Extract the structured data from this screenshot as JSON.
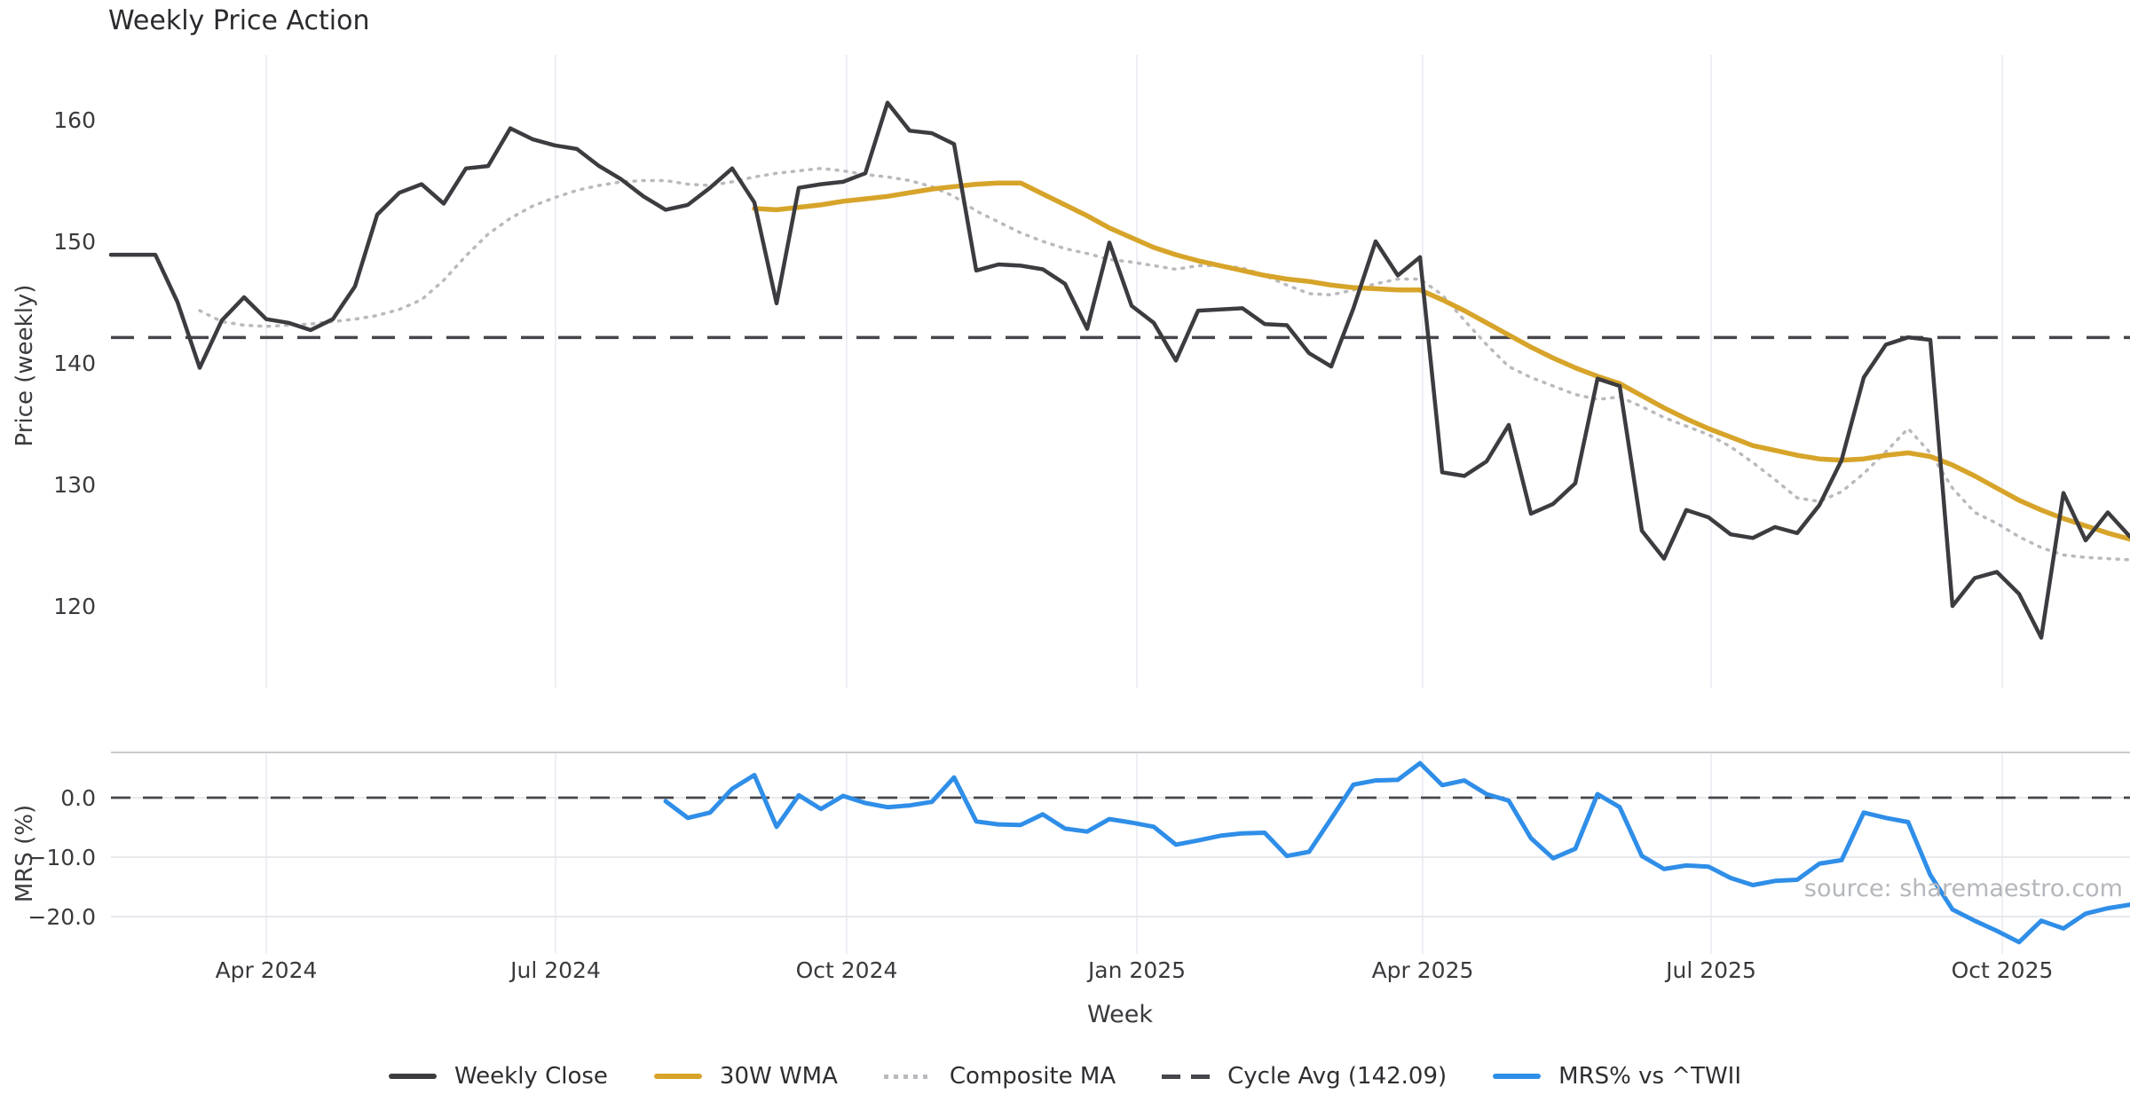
{
  "title": "Weekly Price Action",
  "source_note": "source: sharemaestro.com",
  "colors": {
    "weekly_close": "#3c3c40",
    "wma_30w": "#d7a42a",
    "composite_ma": "#b9babe",
    "cycle_avg": "#46464b",
    "mrs_line": "#2f8ee8",
    "grid_vertical": "#edeff4",
    "grid_horizontal": "#e7e9ed",
    "panel_top_border": "#c9cbcf",
    "tick_text": "#3a3a3e",
    "title_text": "#2b2b2f",
    "source_text": "#b4b7bb"
  },
  "legend": {
    "items": [
      {
        "label": "Weekly Close",
        "swatch": "solid-dark"
      },
      {
        "label": "30W WMA",
        "swatch": "solid-gold"
      },
      {
        "label": "Composite MA",
        "swatch": "dotted-gray"
      },
      {
        "label": "Cycle Avg (142.09)",
        "swatch": "dashed-dark"
      },
      {
        "label": "MRS% vs ^TWII",
        "swatch": "solid-blue"
      }
    ]
  },
  "chart_data": {
    "type": "line",
    "title": "Weekly Price Action",
    "xlabel": "Week",
    "panels": [
      {
        "name": "price",
        "ylabel": "Price (weekly)",
        "ylim": [
          113.3,
          165.1
        ],
        "y_ticks": [
          160,
          150,
          140,
          130,
          120
        ],
        "grid": "vertical-only"
      },
      {
        "name": "mrs",
        "ylabel": "MRS (%)",
        "ylim": [
          -26.5,
          7.6
        ],
        "y_ticks": [
          0.0,
          -10.0,
          -20.0
        ],
        "y_tick_labels": [
          "0.0",
          "−10.0",
          "−20.0"
        ],
        "grid": "both",
        "zero_line_dashed": true
      }
    ],
    "x_ticks": [
      {
        "label": "Apr 2024",
        "week": 7.0
      },
      {
        "label": "Jul 2024",
        "week": 20.04
      },
      {
        "label": "Oct 2024",
        "week": 33.16
      },
      {
        "label": "Jan 2025",
        "week": 46.24
      },
      {
        "label": "Apr 2025",
        "week": 59.12
      },
      {
        "label": "Jul 2025",
        "week": 72.12
      },
      {
        "label": "Oct 2025",
        "week": 85.24
      }
    ],
    "cycle_avg_value": 142.09,
    "series": [
      {
        "name": "Weekly Close",
        "panel": "price",
        "style": "solid",
        "color_key": "weekly_close",
        "width": 4.5,
        "start_week": 0,
        "values": [
          148.9,
          148.9,
          148.9,
          145.0,
          139.6,
          143.5,
          145.4,
          143.6,
          143.3,
          142.7,
          143.6,
          146.3,
          152.2,
          154.0,
          154.7,
          153.1,
          156.0,
          156.2,
          159.3,
          158.4,
          157.9,
          157.6,
          156.2,
          155.1,
          153.7,
          152.6,
          153.0,
          154.4,
          156.0,
          153.2,
          144.9,
          154.4,
          154.7,
          154.9,
          155.6,
          161.4,
          159.1,
          158.9,
          158.0,
          147.6,
          148.1,
          148.0,
          147.7,
          146.5,
          142.8,
          149.9,
          144.7,
          143.3,
          140.2,
          144.3,
          144.4,
          144.5,
          143.2,
          143.1,
          140.8,
          139.7,
          144.5,
          150.0,
          147.2,
          148.7,
          131.0,
          130.7,
          131.9,
          134.9,
          127.6,
          128.4,
          130.1,
          138.7,
          138.1,
          126.2,
          123.9,
          127.9,
          127.3,
          125.9,
          125.6,
          126.5,
          126.0,
          128.3,
          132.0,
          138.8,
          141.5,
          142.1,
          141.9,
          120.0,
          122.3,
          122.8,
          121.0,
          117.4,
          129.3,
          125.4,
          127.7,
          125.7
        ]
      },
      {
        "name": "Composite MA",
        "panel": "price",
        "style": "dotted",
        "color_key": "composite_ma",
        "width": 3.5,
        "start_week": 4,
        "values": [
          144.3,
          143.4,
          143.1,
          143.0,
          143.1,
          143.2,
          143.4,
          143.6,
          143.9,
          144.4,
          145.2,
          146.8,
          148.8,
          150.6,
          151.9,
          152.9,
          153.6,
          154.2,
          154.6,
          154.9,
          155.0,
          155.0,
          154.7,
          154.6,
          154.9,
          155.3,
          155.6,
          155.8,
          156.0,
          155.8,
          155.5,
          155.3,
          155.0,
          154.5,
          153.7,
          152.5,
          151.6,
          150.7,
          150.0,
          149.4,
          149.0,
          148.5,
          148.3,
          148.0,
          147.7,
          148.0,
          148.0,
          147.8,
          147.2,
          146.4,
          145.7,
          145.6,
          146.0,
          146.5,
          146.9,
          146.9,
          145.6,
          143.5,
          141.5,
          139.7,
          138.8,
          138.1,
          137.4,
          137.0,
          137.2,
          136.4,
          135.5,
          134.8,
          134.1,
          133.1,
          131.8,
          130.4,
          128.9,
          128.6,
          129.4,
          130.9,
          132.7,
          134.6,
          132.6,
          129.7,
          127.7,
          126.8,
          125.7,
          124.8,
          124.2,
          124.0,
          123.9,
          123.8,
          123.7
        ]
      },
      {
        "name": "30W WMA",
        "panel": "price",
        "style": "solid",
        "color_key": "wma_30w",
        "width": 5.5,
        "start_week": 29,
        "values": [
          152.7,
          152.6,
          152.8,
          153.0,
          153.3,
          153.5,
          153.7,
          154.0,
          154.3,
          154.5,
          154.7,
          154.8,
          154.8,
          153.9,
          153.0,
          152.1,
          151.1,
          150.3,
          149.5,
          148.9,
          148.4,
          148.0,
          147.6,
          147.2,
          146.9,
          146.7,
          146.4,
          146.2,
          146.1,
          146.0,
          146.0,
          145.2,
          144.3,
          143.3,
          142.3,
          141.3,
          140.4,
          139.6,
          138.9,
          138.3,
          137.3,
          136.3,
          135.4,
          134.6,
          133.9,
          133.2,
          132.8,
          132.4,
          132.1,
          132.0,
          132.1,
          132.4,
          132.6,
          132.3,
          131.6,
          130.7,
          129.7,
          128.7,
          127.9,
          127.2,
          126.6,
          126.0,
          125.5
        ]
      },
      {
        "name": "MRS% vs ^TWII",
        "panel": "mrs",
        "style": "solid",
        "color_key": "mrs_line",
        "width": 5,
        "start_week": 25,
        "values": [
          -0.6,
          -3.4,
          -2.5,
          1.5,
          3.8,
          -4.9,
          0.4,
          -1.9,
          0.3,
          -0.9,
          -1.6,
          -1.3,
          -0.7,
          3.4,
          -4.0,
          -4.5,
          -4.6,
          -2.8,
          -5.2,
          -5.7,
          -3.6,
          -4.2,
          -4.9,
          -7.9,
          -7.2,
          -6.4,
          -6.0,
          -5.9,
          -9.8,
          -9.1,
          -3.5,
          2.2,
          2.9,
          3.0,
          5.8,
          2.1,
          2.9,
          0.6,
          -0.5,
          -6.8,
          -10.2,
          -8.6,
          0.6,
          -1.6,
          -9.8,
          -12.0,
          -11.4,
          -11.6,
          -13.5,
          -14.7,
          -14.0,
          -13.8,
          -11.1,
          -10.5,
          -2.5,
          -3.4,
          -4.1,
          -13.0,
          -18.8,
          -20.7,
          -22.4,
          -24.3,
          -20.7,
          -22.0,
          -19.5,
          -18.6,
          -18.0
        ]
      }
    ]
  }
}
